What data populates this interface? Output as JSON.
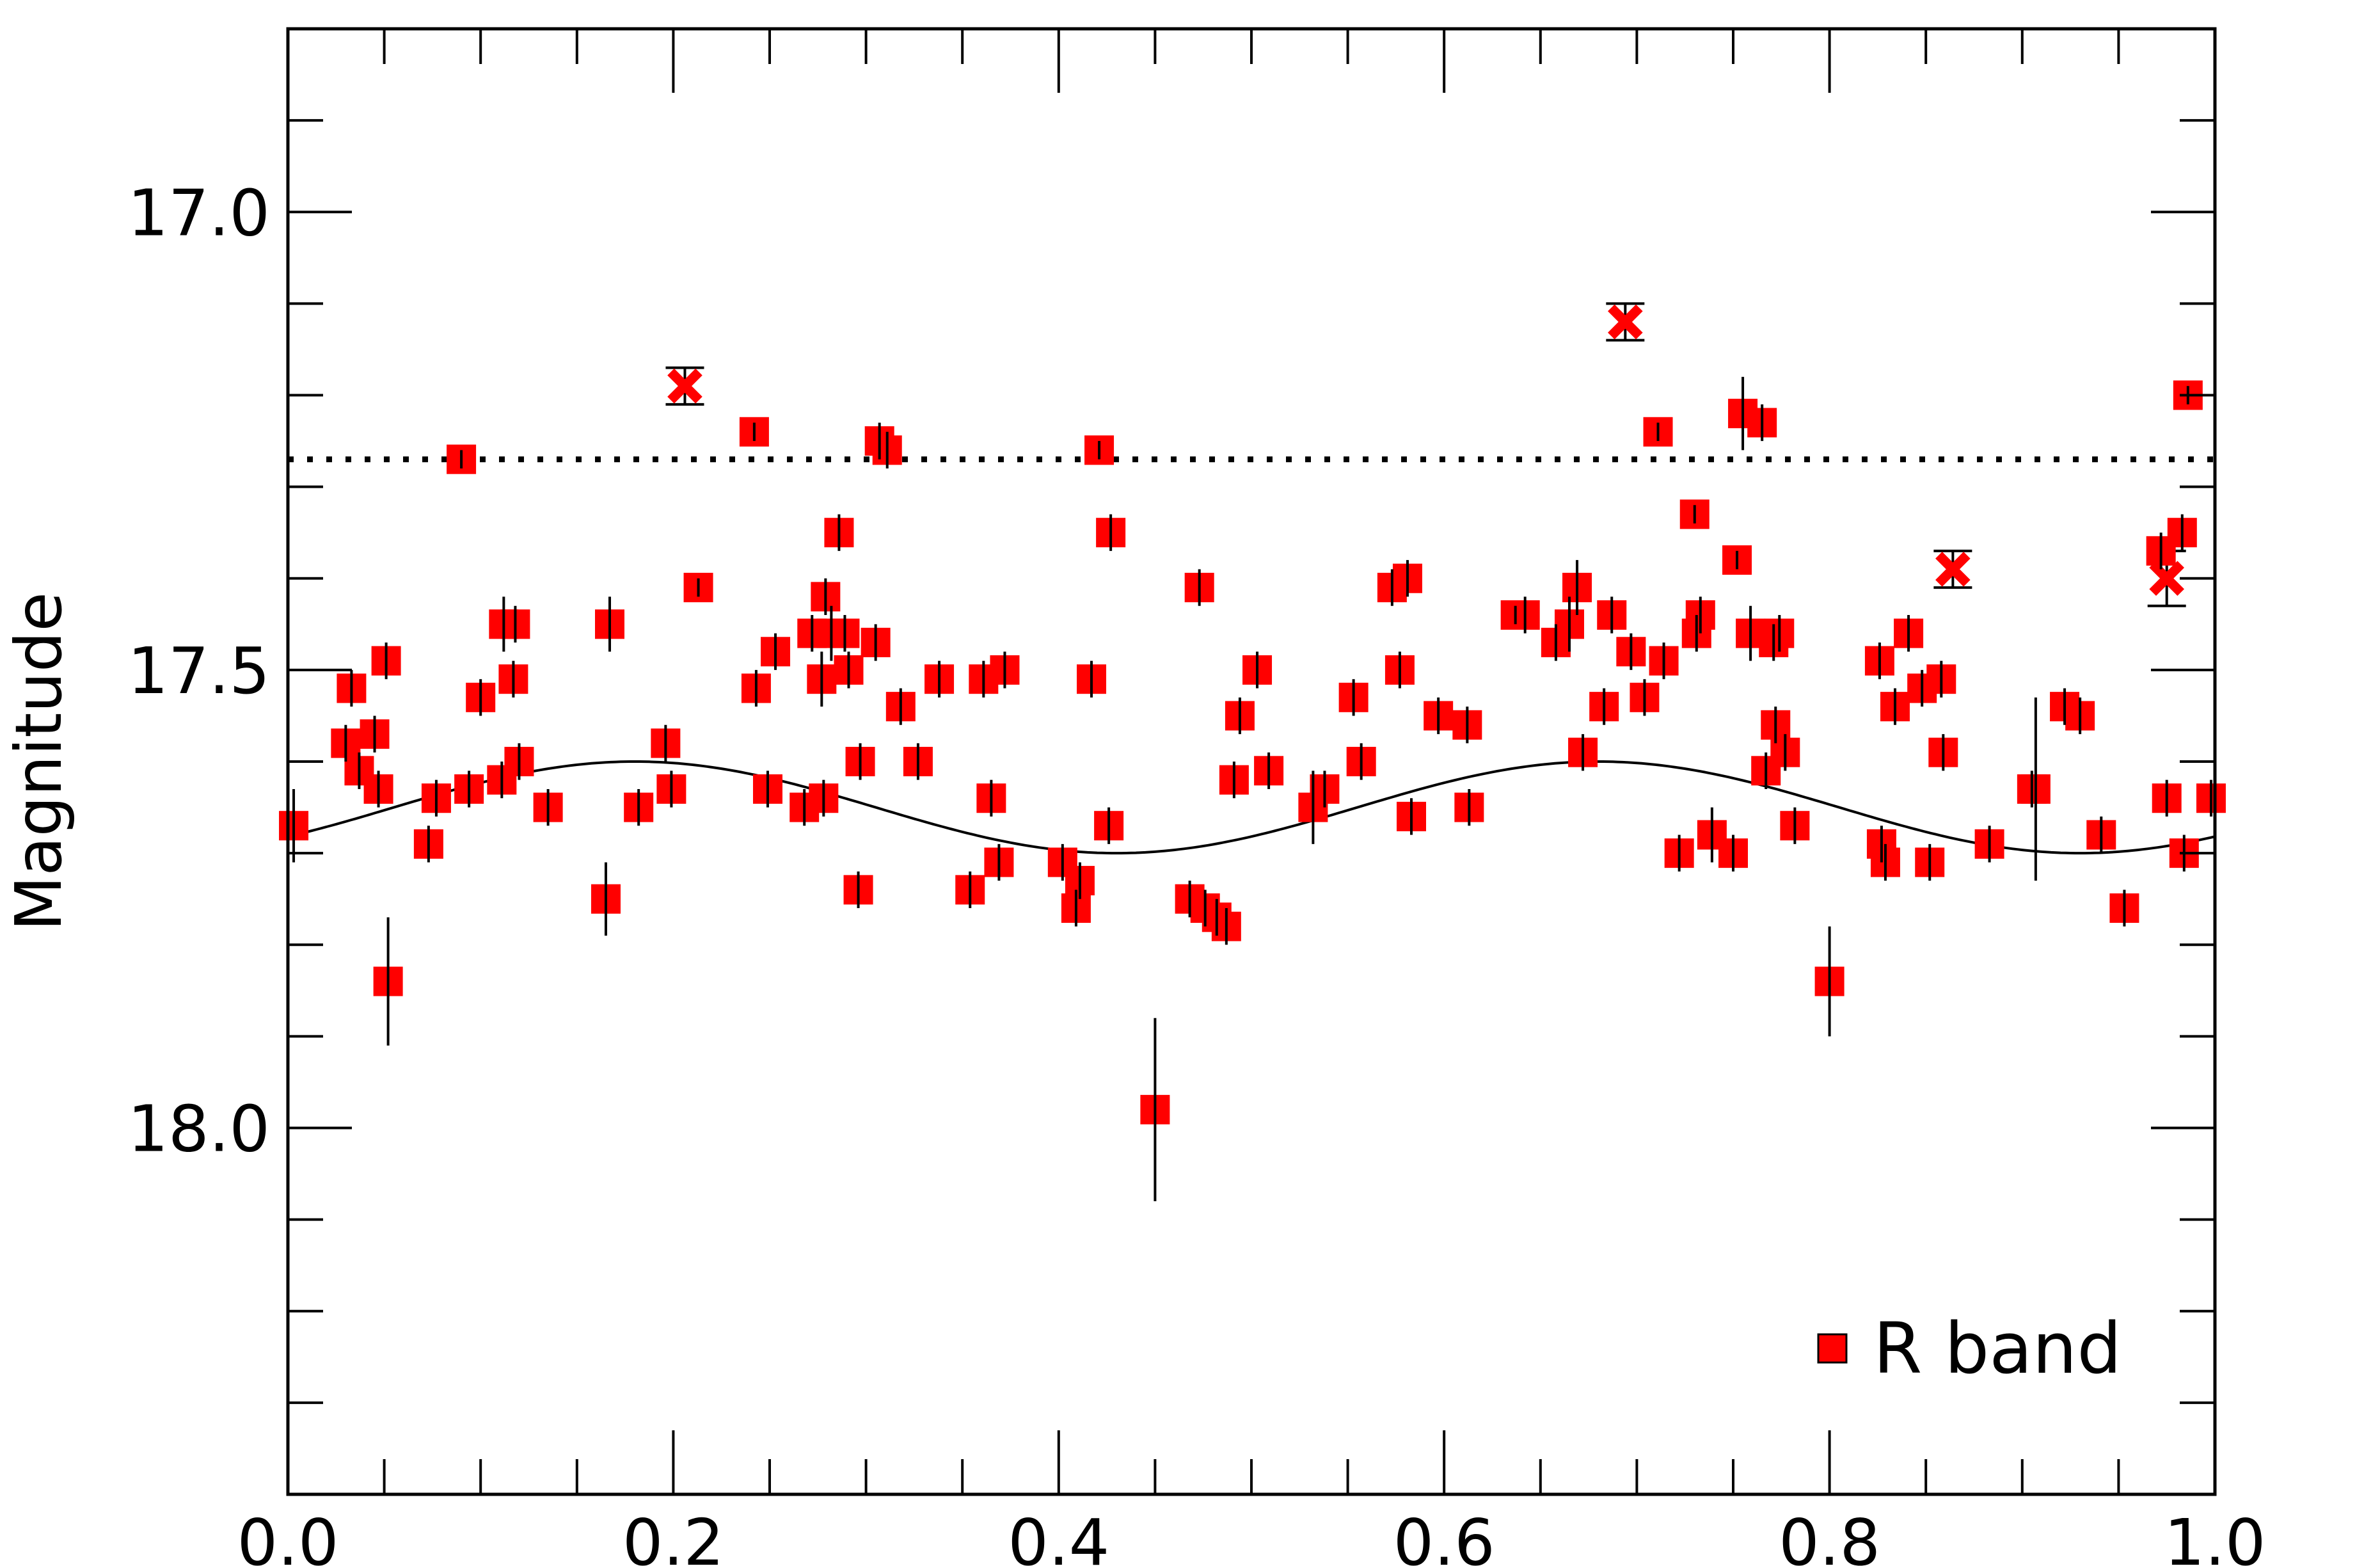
{
  "chart_data": {
    "type": "scatter",
    "title": "",
    "xlabel": "",
    "ylabel": "Magnitude",
    "xlim": [
      0.0,
      1.0
    ],
    "ylim": [
      18.4,
      16.8
    ],
    "y_inverted": true,
    "x_ticks": [
      0.0,
      0.2,
      0.4,
      0.6,
      0.8,
      1.0
    ],
    "x_tick_labels": [
      "0.0",
      "0.2",
      "0.4",
      "0.6",
      "0.8",
      "1.0"
    ],
    "x_minor_step": 0.05,
    "y_ticks": [
      17.0,
      17.5,
      18.0
    ],
    "y_tick_labels": [
      "17.0",
      "17.5",
      "18.0"
    ],
    "y_minor_step": 0.1,
    "grid": false,
    "legend_position": "bottom-right",
    "colors": {
      "marker": "#ff0000",
      "errorbar": "#000000",
      "curve": "#000000",
      "reference": "#000000"
    },
    "reference_line": {
      "y": 17.27,
      "style": "dotted"
    },
    "model_curve": {
      "mean": 17.65,
      "amplitude": 0.05,
      "phase_of_peak": 0.18,
      "harmonic": 2
    },
    "series": [
      {
        "name": "R band",
        "marker": "square",
        "points": [
          [
            0.003,
            17.67,
            0.04
          ],
          [
            0.03,
            17.58,
            0.02
          ],
          [
            0.033,
            17.52,
            0.02
          ],
          [
            0.037,
            17.61,
            0.02
          ],
          [
            0.045,
            17.57,
            0.02
          ],
          [
            0.047,
            17.63,
            0.02
          ],
          [
            0.051,
            17.49,
            0.02
          ],
          [
            0.052,
            17.84,
            0.07
          ],
          [
            0.073,
            17.69,
            0.02
          ],
          [
            0.077,
            17.64,
            0.02
          ],
          [
            0.09,
            17.27,
            0.01
          ],
          [
            0.094,
            17.63,
            0.02
          ],
          [
            0.1,
            17.53,
            0.02
          ],
          [
            0.111,
            17.62,
            0.02
          ],
          [
            0.112,
            17.45,
            0.03
          ],
          [
            0.117,
            17.51,
            0.02
          ],
          [
            0.118,
            17.45,
            0.02
          ],
          [
            0.12,
            17.6,
            0.02
          ],
          [
            0.135,
            17.65,
            0.02
          ],
          [
            0.165,
            17.75,
            0.04
          ],
          [
            0.167,
            17.45,
            0.03
          ],
          [
            0.182,
            17.65,
            0.02
          ],
          [
            0.196,
            17.58,
            0.02
          ],
          [
            0.199,
            17.63,
            0.02
          ],
          [
            0.213,
            17.41,
            0.01
          ],
          [
            0.242,
            17.24,
            0.01
          ],
          [
            0.243,
            17.52,
            0.02
          ],
          [
            0.249,
            17.63,
            0.02
          ],
          [
            0.253,
            17.48,
            0.02
          ],
          [
            0.268,
            17.65,
            0.02
          ],
          [
            0.272,
            17.46,
            0.02
          ],
          [
            0.277,
            17.51,
            0.03
          ],
          [
            0.278,
            17.64,
            0.02
          ],
          [
            0.279,
            17.42,
            0.02
          ],
          [
            0.282,
            17.46,
            0.03
          ],
          [
            0.286,
            17.35,
            0.02
          ],
          [
            0.289,
            17.46,
            0.02
          ],
          [
            0.291,
            17.5,
            0.02
          ],
          [
            0.296,
            17.74,
            0.02
          ],
          [
            0.297,
            17.6,
            0.02
          ],
          [
            0.305,
            17.47,
            0.02
          ],
          [
            0.307,
            17.25,
            0.02
          ],
          [
            0.311,
            17.26,
            0.02
          ],
          [
            0.318,
            17.54,
            0.02
          ],
          [
            0.327,
            17.6,
            0.02
          ],
          [
            0.338,
            17.51,
            0.02
          ],
          [
            0.354,
            17.74,
            0.02
          ],
          [
            0.361,
            17.51,
            0.02
          ],
          [
            0.365,
            17.64,
            0.02
          ],
          [
            0.369,
            17.71,
            0.02
          ],
          [
            0.372,
            17.5,
            0.02
          ],
          [
            0.402,
            17.71,
            0.02
          ],
          [
            0.409,
            17.76,
            0.02
          ],
          [
            0.411,
            17.73,
            0.02
          ],
          [
            0.417,
            17.51,
            0.02
          ],
          [
            0.421,
            17.26,
            0.01
          ],
          [
            0.426,
            17.67,
            0.02
          ],
          [
            0.427,
            17.35,
            0.02
          ],
          [
            0.45,
            17.98,
            0.1
          ],
          [
            0.468,
            17.75,
            0.02
          ],
          [
            0.473,
            17.41,
            0.02
          ],
          [
            0.476,
            17.76,
            0.02
          ],
          [
            0.482,
            17.77,
            0.02
          ],
          [
            0.487,
            17.78,
            0.02
          ],
          [
            0.491,
            17.62,
            0.02
          ],
          [
            0.494,
            17.55,
            0.02
          ],
          [
            0.503,
            17.5,
            0.02
          ],
          [
            0.509,
            17.61,
            0.02
          ],
          [
            0.532,
            17.65,
            0.04
          ],
          [
            0.538,
            17.63,
            0.02
          ],
          [
            0.553,
            17.53,
            0.02
          ],
          [
            0.557,
            17.6,
            0.02
          ],
          [
            0.573,
            17.41,
            0.02
          ],
          [
            0.577,
            17.5,
            0.02
          ],
          [
            0.581,
            17.4,
            0.02
          ],
          [
            0.583,
            17.66,
            0.02
          ],
          [
            0.597,
            17.55,
            0.02
          ],
          [
            0.612,
            17.56,
            0.02
          ],
          [
            0.613,
            17.65,
            0.02
          ],
          [
            0.637,
            17.44,
            0.01
          ],
          [
            0.642,
            17.44,
            0.02
          ],
          [
            0.658,
            17.47,
            0.02
          ],
          [
            0.665,
            17.45,
            0.03
          ],
          [
            0.669,
            17.41,
            0.03
          ],
          [
            0.672,
            17.59,
            0.02
          ],
          [
            0.683,
            17.54,
            0.02
          ],
          [
            0.687,
            17.44,
            0.02
          ],
          [
            0.697,
            17.48,
            0.02
          ],
          [
            0.704,
            17.53,
            0.02
          ],
          [
            0.711,
            17.24,
            0.01
          ],
          [
            0.714,
            17.49,
            0.02
          ],
          [
            0.722,
            17.7,
            0.02
          ],
          [
            0.73,
            17.33,
            0.01
          ],
          [
            0.731,
            17.46,
            0.02
          ],
          [
            0.733,
            17.44,
            0.02
          ],
          [
            0.739,
            17.68,
            0.03
          ],
          [
            0.75,
            17.7,
            0.02
          ],
          [
            0.752,
            17.38,
            0.01
          ],
          [
            0.755,
            17.22,
            0.04
          ],
          [
            0.759,
            17.46,
            0.03
          ],
          [
            0.765,
            17.23,
            0.02
          ],
          [
            0.767,
            17.61,
            0.02
          ],
          [
            0.771,
            17.47,
            0.02
          ],
          [
            0.772,
            17.56,
            0.02
          ],
          [
            0.774,
            17.46,
            0.02
          ],
          [
            0.777,
            17.59,
            0.02
          ],
          [
            0.782,
            17.67,
            0.02
          ],
          [
            0.8,
            17.84,
            0.06
          ],
          [
            0.826,
            17.49,
            0.02
          ],
          [
            0.827,
            17.69,
            0.02
          ],
          [
            0.829,
            17.71,
            0.02
          ],
          [
            0.834,
            17.54,
            0.02
          ],
          [
            0.841,
            17.46,
            0.02
          ],
          [
            0.848,
            17.52,
            0.02
          ],
          [
            0.852,
            17.71,
            0.02
          ],
          [
            0.858,
            17.51,
            0.02
          ],
          [
            0.859,
            17.59,
            0.02
          ],
          [
            0.883,
            17.69,
            0.02
          ],
          [
            0.905,
            17.63,
            0.02
          ],
          [
            0.907,
            17.63,
            0.1
          ],
          [
            0.922,
            17.54,
            0.02
          ],
          [
            0.93,
            17.55,
            0.02
          ],
          [
            0.941,
            17.68,
            0.02
          ],
          [
            0.953,
            17.76,
            0.02
          ],
          [
            0.972,
            17.37,
            0.02
          ],
          [
            0.975,
            17.64,
            0.02
          ],
          [
            0.983,
            17.35,
            0.02
          ],
          [
            0.984,
            17.7,
            0.02
          ],
          [
            0.986,
            17.2,
            0.01
          ],
          [
            0.998,
            17.64,
            0.02
          ]
        ]
      },
      {
        "name": "",
        "marker": "x",
        "points": [
          [
            0.206,
            17.19,
            0.02
          ],
          [
            0.694,
            17.12,
            0.02
          ],
          [
            0.864,
            17.39,
            0.02
          ],
          [
            0.975,
            17.4,
            0.03
          ]
        ]
      }
    ]
  }
}
